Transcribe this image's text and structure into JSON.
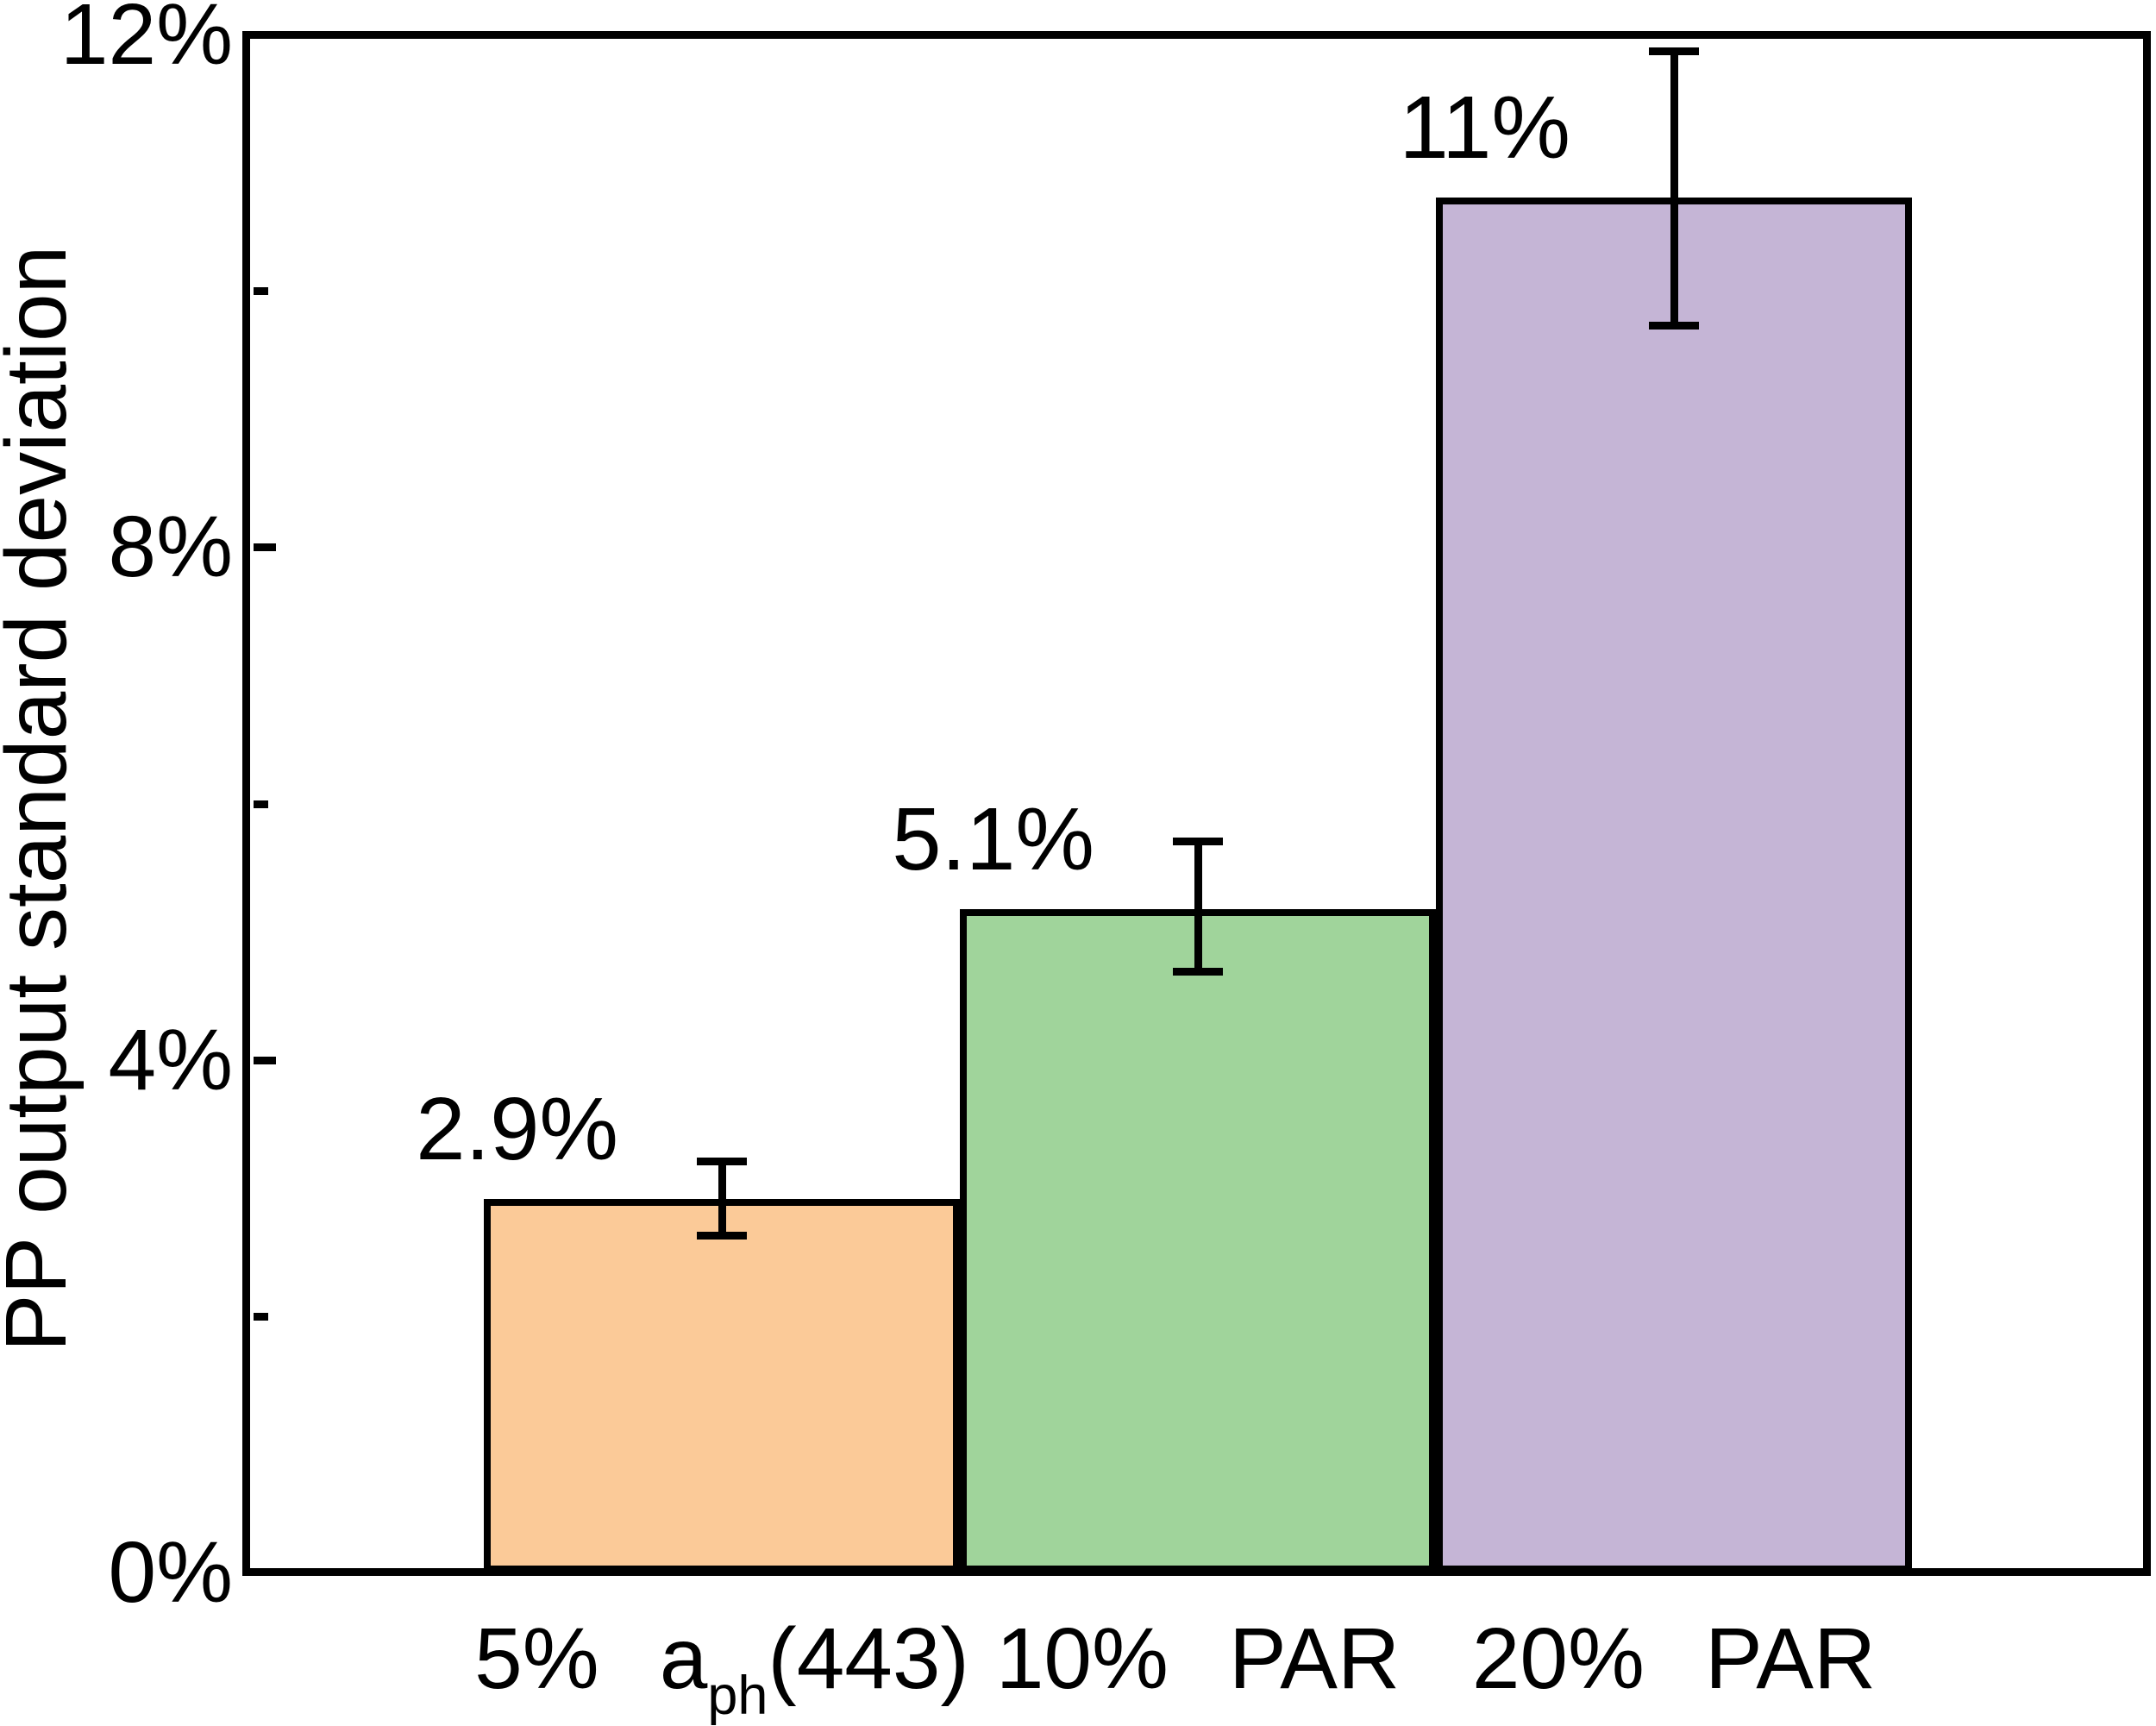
{
  "chart_data": {
    "type": "bar",
    "title": "",
    "xlabel": "",
    "ylabel": "PP output standard deviation",
    "y_unit": "%",
    "ylim": [
      0,
      12
    ],
    "grid": "off",
    "legend": "none",
    "y_major_ticks": [
      0,
      4,
      8,
      12
    ],
    "y_major_tick_labels": [
      "0%",
      "4%",
      "8%",
      "12%"
    ],
    "y_minor_ticks": [
      2,
      6,
      10
    ],
    "categories_text": [
      "5% aph(443)",
      "10% PAR",
      "20% PAR"
    ],
    "values": [
      2.9,
      5.1,
      11
    ],
    "frame_color": "#000000",
    "bar_border_color": "#000000",
    "error_bar_color": "#000000",
    "bars": [
      {
        "category": {
          "prefix": "5%",
          "base": "a",
          "sub": "ph",
          "suffix": "(443)"
        },
        "label": "2.9%",
        "value_pct": 2.9,
        "bar_top_pct": 2.89,
        "err_low_pct": 2.63,
        "err_high_pct": 3.21,
        "color": "#FBCA98"
      },
      {
        "category": {
          "prefix": "10%",
          "base": "PAR",
          "sub": "",
          "suffix": ""
        },
        "label": "5.1%",
        "value_pct": 5.1,
        "bar_top_pct": 5.15,
        "err_low_pct": 4.69,
        "err_high_pct": 5.71,
        "color": "#A0D49B"
      },
      {
        "category": {
          "prefix": "20%",
          "base": "PAR",
          "sub": "",
          "suffix": ""
        },
        "label": "11%",
        "value_pct": 11,
        "bar_top_pct": 10.7,
        "err_low_pct": 9.73,
        "err_high_pct": 11.87,
        "color": "#C5B5D6"
      }
    ]
  }
}
